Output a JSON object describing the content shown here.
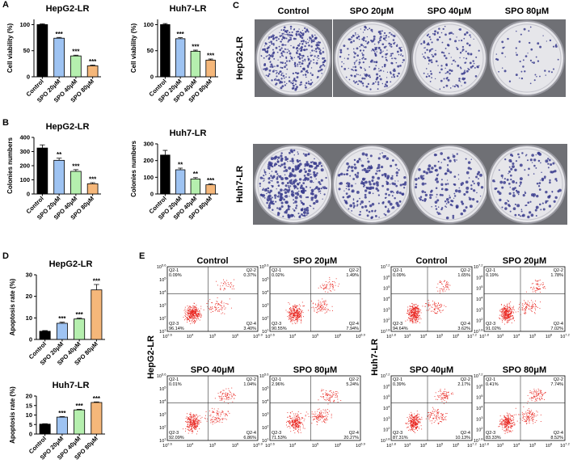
{
  "chart_data": [
    {
      "type": "bar",
      "panel": "A",
      "title": "HepG2-LR",
      "y_label": "Cell viability (%)",
      "categories": [
        "Control",
        "SPO 20μM",
        "SPO 40μM",
        "SPO 80μM"
      ],
      "values": [
        100,
        74,
        40,
        21
      ],
      "errors": [
        1.5,
        1.5,
        1.5,
        1.5
      ],
      "annotations": [
        null,
        "***",
        "***",
        "***"
      ],
      "colors": [
        "#000000",
        "#9ec3f2",
        "#b5efae",
        "#f5b77a"
      ],
      "ylim": [
        0,
        110
      ],
      "yticks": [
        0,
        50,
        100
      ]
    },
    {
      "type": "bar",
      "title": "Huh7-LR",
      "y_label": "Cell viability (%)",
      "categories": [
        "Control",
        "SPO 20μM",
        "SPO 40μM",
        "SPO 80μM"
      ],
      "values": [
        100,
        73,
        49,
        32
      ],
      "errors": [
        2,
        2,
        2,
        2
      ],
      "annotations": [
        null,
        "***",
        "***",
        "***"
      ],
      "colors": [
        "#000000",
        "#9ec3f2",
        "#b5efae",
        "#f5b77a"
      ],
      "ylim": [
        0,
        110
      ],
      "yticks": [
        0,
        50,
        100
      ]
    },
    {
      "type": "bar",
      "panel": "B",
      "title": "HepG2-LR",
      "y_label": "Colonies numbers",
      "categories": [
        "Control",
        "SPO 20μM",
        "SPO 40μM",
        "SPO 80μM"
      ],
      "values": [
        325,
        238,
        160,
        72
      ],
      "errors": [
        22,
        15,
        12,
        8
      ],
      "annotations": [
        null,
        "**",
        "***",
        "***"
      ],
      "colors": [
        "#000000",
        "#9ec3f2",
        "#b5efae",
        "#f5b77a"
      ],
      "ylim": [
        0,
        400
      ],
      "yticks": [
        0,
        100,
        200,
        300,
        400
      ]
    },
    {
      "type": "bar",
      "title": "Huh7-LR",
      "y_label": "Colonies numbers",
      "categories": [
        "Control",
        "SPO 20μM",
        "SPO 40μM",
        "SPO 80μM"
      ],
      "values": [
        233,
        145,
        90,
        55
      ],
      "errors": [
        28,
        10,
        8,
        5
      ],
      "annotations": [
        null,
        "**",
        "**",
        "***"
      ],
      "colors": [
        "#000000",
        "#9ec3f2",
        "#b5efae",
        "#f5b77a"
      ],
      "ylim": [
        0,
        300
      ],
      "yticks": [
        0,
        100,
        200,
        300
      ]
    },
    {
      "type": "bar",
      "panel": "D",
      "title": "HepG2-LR",
      "y_label": "Apoptosis rate (%)",
      "categories": [
        "Control",
        "SPO 20μM",
        "SPO 40μM",
        "SPO 80μM"
      ],
      "values": [
        3.8,
        7.5,
        9.5,
        23
      ],
      "errors": [
        0.3,
        0.5,
        0.4,
        2.5
      ],
      "annotations": [
        null,
        "***",
        "***",
        "***"
      ],
      "colors": [
        "#000000",
        "#9ec3f2",
        "#b5efae",
        "#f5b77a"
      ],
      "ylim": [
        0,
        30
      ],
      "yticks": [
        0,
        10,
        20,
        30
      ]
    },
    {
      "type": "bar",
      "title": "Huh7-LR",
      "y_label": "Apoptosis rate (%)",
      "categories": [
        "Control",
        "SPO 20μM",
        "SPO 40μM",
        "SPO 80μM"
      ],
      "values": [
        5.2,
        8.9,
        12.7,
        16.6
      ],
      "errors": [
        0.2,
        0.3,
        0.3,
        0.3
      ],
      "annotations": [
        null,
        "***",
        "***",
        "***"
      ],
      "colors": [
        "#000000",
        "#9ec3f2",
        "#b5efae",
        "#f5b77a"
      ],
      "ylim": [
        0,
        20
      ],
      "yticks": [
        0,
        5,
        10,
        15,
        20
      ]
    }
  ],
  "panel_c": {
    "panel": "C",
    "columns": [
      "Control",
      "SPO 20μM",
      "SPO 40μM",
      "SPO 80μM"
    ],
    "rows": [
      "HepG2-LR",
      "Huh7-LR"
    ]
  },
  "panel_e": {
    "panel": "E",
    "groups": [
      {
        "label": "HepG2-LR",
        "xticks": [
          {
            "base": "10",
            "exp": "2.6"
          },
          {
            "base": "10",
            "exp": "4"
          },
          {
            "base": "10",
            "exp": "5"
          },
          {
            "base": "10",
            "exp": "6"
          },
          {
            "base": "10",
            "exp": "6.9"
          }
        ],
        "yticks": [
          {
            "base": "10",
            "exp": "1"
          },
          {
            "base": "10",
            "exp": "2"
          },
          {
            "base": "10",
            "exp": "3"
          },
          {
            "base": "10",
            "exp": "4"
          },
          {
            "base": "10",
            "exp": "5"
          },
          {
            "base": "10",
            "exp": "5.6"
          }
        ],
        "plots": [
          {
            "title": "Control",
            "quadrants": [
              {
                "name": "Q2-1",
                "value": "0.09%"
              },
              {
                "name": "Q2-2",
                "value": "0.37%"
              },
              {
                "name": "Q2-3",
                "value": "96.14%"
              },
              {
                "name": "Q2-4",
                "value": "3.40%"
              }
            ]
          },
          {
            "title": "SPO 20μM",
            "quadrants": [
              {
                "name": "Q2-1",
                "value": "0.02%"
              },
              {
                "name": "Q2-2",
                "value": "1.49%"
              },
              {
                "name": "Q2-3",
                "value": "90.55%"
              },
              {
                "name": "Q2-4",
                "value": "7.94%"
              }
            ]
          },
          {
            "title": "SPO 40μM",
            "quadrants": [
              {
                "name": "Q2-1",
                "value": "0.01%"
              },
              {
                "name": "Q2-2",
                "value": "1.04%"
              },
              {
                "name": "Q2-3",
                "value": "92.09%"
              },
              {
                "name": "Q2-4",
                "value": "6.86%"
              }
            ]
          },
          {
            "title": "SPO 80μM",
            "quadrants": [
              {
                "name": "Q2-1",
                "value": "2.96%"
              },
              {
                "name": "Q2-2",
                "value": "5.24%"
              },
              {
                "name": "Q2-3",
                "value": "71.53%"
              },
              {
                "name": "Q2-4",
                "value": "20.27%"
              }
            ]
          }
        ]
      },
      {
        "label": "Huh7-LR",
        "xticks": [
          {
            "base": "10",
            "exp": "1.8"
          },
          {
            "base": "10",
            "exp": "3"
          },
          {
            "base": "10",
            "exp": "4"
          },
          {
            "base": "10",
            "exp": "5"
          },
          {
            "base": "10",
            "exp": "6"
          },
          {
            "base": "10",
            "exp": "7.2"
          }
        ],
        "yticks": [
          {
            "base": "10",
            "exp": "1.8"
          },
          {
            "base": "10",
            "exp": "2"
          },
          {
            "base": "10",
            "exp": "3"
          },
          {
            "base": "10",
            "exp": "4"
          },
          {
            "base": "10",
            "exp": "5"
          },
          {
            "base": "10",
            "exp": "6"
          },
          {
            "base": "10",
            "exp": "7.2"
          }
        ],
        "plots": [
          {
            "title": "Control",
            "quadrants": [
              {
                "name": "Q2-1",
                "value": "0.09%"
              },
              {
                "name": "Q2-2",
                "value": "1.65%"
              },
              {
                "name": "Q2-3",
                "value": "94.64%"
              },
              {
                "name": "Q2-4",
                "value": "3.62%"
              }
            ]
          },
          {
            "title": "SPO 20μM",
            "quadrants": [
              {
                "name": "Q2-1",
                "value": "0.19%"
              },
              {
                "name": "Q2-2",
                "value": "1.78%"
              },
              {
                "name": "Q2-3",
                "value": "91.02%"
              },
              {
                "name": "Q2-4",
                "value": "7.02%"
              }
            ]
          },
          {
            "title": "SPO 40μM",
            "quadrants": [
              {
                "name": "Q2-1",
                "value": "0.39%"
              },
              {
                "name": "Q2-2",
                "value": "2.17%"
              },
              {
                "name": "Q2-3",
                "value": "87.31%"
              },
              {
                "name": "Q2-4",
                "value": "10.13%"
              }
            ]
          },
          {
            "title": "SPO 80μM",
            "quadrants": [
              {
                "name": "Q2-1",
                "value": "0.41%"
              },
              {
                "name": "Q2-2",
                "value": "7.74%"
              },
              {
                "name": "Q2-3",
                "value": "83.33%"
              },
              {
                "name": "Q2-4",
                "value": "8.52%"
              }
            ]
          }
        ]
      }
    ]
  }
}
